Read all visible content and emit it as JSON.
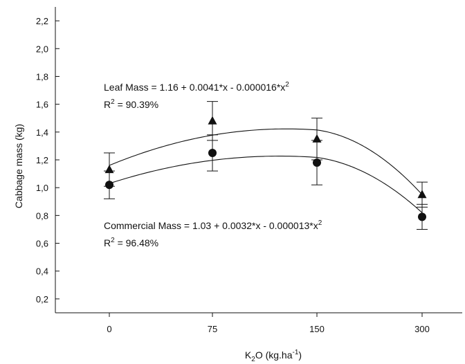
{
  "chart_data": {
    "type": "scatter",
    "categories": [
      "0",
      "75",
      "150",
      "300"
    ],
    "xlabel": {
      "main": "K",
      "sub": "2",
      "rest": "O (kg.ha",
      "sup": "-1",
      "close": ")"
    },
    "ylabel": "Cabbage mass (kg)",
    "ylim": [
      0.1,
      2.3
    ],
    "yticks": [
      "0,2",
      "0,4",
      "0,6",
      "0,8",
      "1,0",
      "1,2",
      "1,4",
      "1,6",
      "1,8",
      "2,0",
      "2,2"
    ],
    "ytick_values": [
      0.2,
      0.4,
      0.6,
      0.8,
      1.0,
      1.2,
      1.4,
      1.6,
      1.8,
      2.0,
      2.2
    ],
    "grid": false,
    "series": [
      {
        "name": "Leaf Mass",
        "marker": "triangle",
        "values": [
          1.13,
          1.48,
          1.35,
          0.95
        ],
        "errors": [
          0.12,
          0.14,
          0.15,
          0.09
        ],
        "fit": {
          "a": 1.16,
          "b": 0.0041,
          "c": -1.6e-05
        },
        "equation": "Leaf Mass = 1.16 + 0.0041*x - 0.000016*x",
        "equation_sup": "2",
        "r2_prefix": "R",
        "r2_sup": "2",
        "r2_value": " = 90.39%"
      },
      {
        "name": "Commercial Mass",
        "marker": "circle",
        "values": [
          1.02,
          1.25,
          1.18,
          0.79
        ],
        "errors": [
          0.1,
          0.13,
          0.16,
          0.09
        ],
        "fit": {
          "a": 1.03,
          "b": 0.0032,
          "c": -1.3e-05
        },
        "equation": "Commercial Mass = 1.03 + 0.0032*x - 0.000013*x",
        "equation_sup": "2",
        "r2_prefix": "R",
        "r2_sup": "2",
        "r2_value": " = 96.48%"
      }
    ],
    "colors": {
      "ink": "#111111"
    }
  }
}
